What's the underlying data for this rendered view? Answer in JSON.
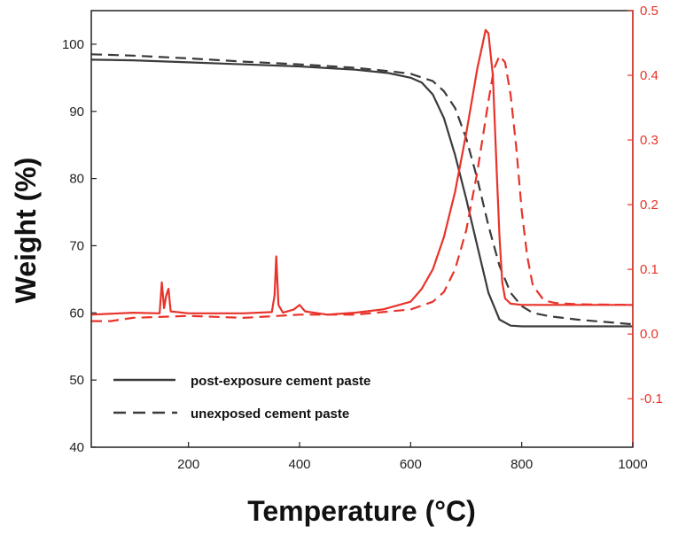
{
  "chart_data": {
    "type": "line",
    "xlabel": "Temperature (°C)",
    "ylabel": "Weight (%)",
    "xlim": [
      25,
      1000
    ],
    "ylim_left": [
      40,
      105
    ],
    "ylim_right": [
      -0.175,
      0.5
    ],
    "x_ticks": [
      200,
      400,
      600,
      800,
      1000
    ],
    "y_left_ticks": [
      40,
      50,
      60,
      70,
      80,
      90,
      100
    ],
    "y_right_ticks": [
      -0.1,
      0.0,
      0.1,
      0.2,
      0.3,
      0.4,
      0.5
    ],
    "x_tick_labels": [
      "200",
      "400",
      "600",
      "800",
      "1000"
    ],
    "y_left_tick_labels": [
      "40",
      "50",
      "60",
      "70",
      "80",
      "90",
      "100"
    ],
    "y_right_tick_labels": [
      "-0.1",
      "0.0",
      "0.1",
      "0.2",
      "0.3",
      "0.4",
      "0.5"
    ],
    "colors": {
      "tga": "#3a3a3a",
      "dtg": "#e8332a",
      "axis": "#222222"
    },
    "legend": {
      "position": "bottom-left",
      "entries": [
        {
          "label": "post-exposure cement paste",
          "style": "solid"
        },
        {
          "label": "unexposed cement paste",
          "style": "dashed"
        }
      ]
    },
    "series": [
      {
        "name": "post-exposure cement paste (weight)",
        "axis": "left",
        "style": "solid",
        "color": "#3a3a3a",
        "x": [
          25,
          100,
          200,
          300,
          400,
          500,
          560,
          600,
          620,
          640,
          660,
          680,
          700,
          720,
          740,
          760,
          780,
          800,
          850,
          900,
          1000
        ],
        "y": [
          97.7,
          97.6,
          97.3,
          97.0,
          96.7,
          96.2,
          95.7,
          95.0,
          94.3,
          92.5,
          89.0,
          83.5,
          77.0,
          70.0,
          63.0,
          59.0,
          58.1,
          58.0,
          58.0,
          58.0,
          58.0
        ]
      },
      {
        "name": "unexposed cement paste (weight)",
        "axis": "left",
        "style": "dashed",
        "color": "#3a3a3a",
        "x": [
          25,
          100,
          200,
          300,
          400,
          500,
          560,
          600,
          640,
          660,
          680,
          700,
          720,
          740,
          760,
          780,
          800,
          820,
          850,
          900,
          1000
        ],
        "y": [
          98.5,
          98.3,
          97.9,
          97.4,
          97.0,
          96.5,
          96.0,
          95.6,
          94.5,
          93.0,
          90.5,
          86.0,
          80.0,
          73.0,
          67.0,
          63.0,
          61.0,
          60.0,
          59.5,
          59.0,
          58.3
        ]
      },
      {
        "name": "post-exposure cement paste (DTG)",
        "axis": "right",
        "style": "solid",
        "color": "#e8332a",
        "x": [
          25,
          100,
          148,
          152,
          156,
          160,
          164,
          168,
          200,
          300,
          350,
          355,
          358,
          362,
          370,
          390,
          400,
          410,
          450,
          500,
          550,
          600,
          620,
          640,
          660,
          680,
          700,
          710,
          720,
          730,
          735,
          740,
          748,
          755,
          760,
          765,
          770,
          780,
          800,
          850,
          900,
          1000
        ],
        "y": [
          0.03,
          0.033,
          0.032,
          0.08,
          0.04,
          0.06,
          0.07,
          0.035,
          0.032,
          0.032,
          0.034,
          0.06,
          0.12,
          0.045,
          0.033,
          0.038,
          0.045,
          0.035,
          0.03,
          0.033,
          0.038,
          0.05,
          0.07,
          0.1,
          0.15,
          0.22,
          0.31,
          0.36,
          0.41,
          0.45,
          0.47,
          0.465,
          0.4,
          0.25,
          0.15,
          0.08,
          0.055,
          0.047,
          0.045,
          0.045,
          0.045,
          0.045
        ]
      },
      {
        "name": "unexposed cement paste (DTG)",
        "axis": "right",
        "style": "dashed",
        "color": "#e8332a",
        "x": [
          25,
          60,
          100,
          200,
          300,
          400,
          500,
          600,
          640,
          660,
          680,
          700,
          720,
          740,
          750,
          760,
          770,
          780,
          790,
          800,
          810,
          820,
          840,
          860,
          900,
          1000
        ],
        "y": [
          0.02,
          0.02,
          0.025,
          0.028,
          0.025,
          0.03,
          0.03,
          0.038,
          0.05,
          0.065,
          0.1,
          0.16,
          0.25,
          0.36,
          0.41,
          0.43,
          0.42,
          0.37,
          0.29,
          0.19,
          0.12,
          0.075,
          0.052,
          0.048,
          0.046,
          0.045
        ]
      }
    ]
  }
}
